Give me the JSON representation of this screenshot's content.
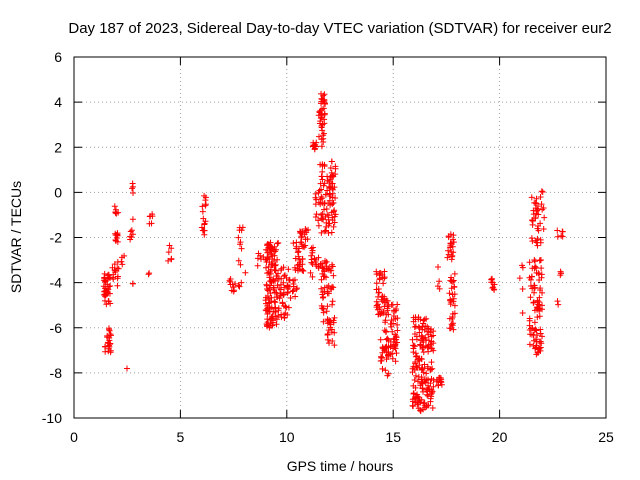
{
  "chart_data": {
    "type": "scatter",
    "title": "Day 187 of 2023, Sidereal Day-to-day VTEC variation (SDTVAR) for receiver eur2",
    "xlabel": "GPS time / hours",
    "ylabel": "SDTVAR / TECUs",
    "xlim": [
      0,
      25
    ],
    "ylim": [
      -10,
      6
    ],
    "xticks": [
      0,
      5,
      10,
      15,
      20,
      25
    ],
    "yticks": [
      -10,
      -8,
      -6,
      -4,
      -2,
      0,
      2,
      4,
      6
    ],
    "grid": true,
    "marker": "+",
    "color": "#ff0000",
    "clusters": [
      {
        "x": [
          1.4,
          1.7
        ],
        "y": [
          -5.0,
          -3.6
        ],
        "n": 40
      },
      {
        "x": [
          1.45,
          1.75
        ],
        "y": [
          -7.3,
          -6.0
        ],
        "n": 22
      },
      {
        "x": [
          1.8,
          2.1
        ],
        "y": [
          -4.3,
          -3.0
        ],
        "n": 14
      },
      {
        "x": [
          1.9,
          2.1
        ],
        "y": [
          -2.2,
          -1.7
        ],
        "n": 10
      },
      {
        "x": [
          1.9,
          2.1
        ],
        "y": [
          -1.0,
          -0.6
        ],
        "n": 8
      },
      {
        "x": [
          2.2,
          2.4
        ],
        "y": [
          -3.5,
          -2.8
        ],
        "n": 4
      },
      {
        "x": [
          2.4,
          2.5
        ],
        "y": [
          -7.9,
          -7.6
        ],
        "n": 1
      },
      {
        "x": [
          2.6,
          2.8
        ],
        "y": [
          -2.2,
          -1.1
        ],
        "n": 7
      },
      {
        "x": [
          2.7,
          2.8
        ],
        "y": [
          -0.1,
          0.5
        ],
        "n": 4
      },
      {
        "x": [
          2.7,
          2.8
        ],
        "y": [
          -4.1,
          -3.8
        ],
        "n": 2
      },
      {
        "x": [
          3.5,
          3.7
        ],
        "y": [
          -1.4,
          -0.6
        ],
        "n": 6
      },
      {
        "x": [
          3.5,
          3.6
        ],
        "y": [
          -3.7,
          -3.4
        ],
        "n": 2
      },
      {
        "x": [
          4.4,
          4.6
        ],
        "y": [
          -3.2,
          -2.2
        ],
        "n": 6
      },
      {
        "x": [
          6.0,
          6.2
        ],
        "y": [
          -1.9,
          -0.1
        ],
        "n": 16
      },
      {
        "x": [
          7.3,
          7.6
        ],
        "y": [
          -4.4,
          -3.7
        ],
        "n": 10
      },
      {
        "x": [
          7.5,
          8.0
        ],
        "y": [
          -2.8,
          -1.5
        ],
        "n": 8
      },
      {
        "x": [
          7.7,
          8.1
        ],
        "y": [
          -4.3,
          -3.0
        ],
        "n": 6
      },
      {
        "x": [
          8.6,
          8.9
        ],
        "y": [
          -3.6,
          -2.2
        ],
        "n": 6
      },
      {
        "x": [
          9.0,
          9.6
        ],
        "y": [
          -6.0,
          -2.2
        ],
        "n": 130
      },
      {
        "x": [
          9.6,
          10.1
        ],
        "y": [
          -5.7,
          -3.2
        ],
        "n": 40
      },
      {
        "x": [
          10.0,
          10.5
        ],
        "y": [
          -4.8,
          -3.8
        ],
        "n": 15
      },
      {
        "x": [
          10.3,
          10.8
        ],
        "y": [
          -3.5,
          -2.0
        ],
        "n": 30
      },
      {
        "x": [
          10.6,
          11.0
        ],
        "y": [
          -2.6,
          -1.6
        ],
        "n": 18
      },
      {
        "x": [
          11.1,
          11.6
        ],
        "y": [
          -3.8,
          -2.4
        ],
        "n": 20
      },
      {
        "x": [
          11.2,
          11.4
        ],
        "y": [
          1.9,
          2.3
        ],
        "n": 10
      },
      {
        "x": [
          11.3,
          11.5
        ],
        "y": [
          -1.3,
          0.2
        ],
        "n": 8
      },
      {
        "x": [
          11.5,
          11.8
        ],
        "y": [
          2.0,
          4.4
        ],
        "n": 40
      },
      {
        "x": [
          11.5,
          12.3
        ],
        "y": [
          -1.8,
          1.4
        ],
        "n": 90
      },
      {
        "x": [
          11.6,
          12.2
        ],
        "y": [
          -5.8,
          -3.0
        ],
        "n": 50
      },
      {
        "x": [
          11.9,
          12.3
        ],
        "y": [
          -6.8,
          -5.5
        ],
        "n": 20
      },
      {
        "x": [
          14.2,
          14.6
        ],
        "y": [
          -5.5,
          -3.4
        ],
        "n": 40
      },
      {
        "x": [
          14.4,
          14.8
        ],
        "y": [
          -8.3,
          -6.5
        ],
        "n": 25
      },
      {
        "x": [
          14.6,
          15.2
        ],
        "y": [
          -7.5,
          -4.8
        ],
        "n": 60
      },
      {
        "x": [
          15.9,
          16.9
        ],
        "y": [
          -9.7,
          -5.5
        ],
        "n": 170
      },
      {
        "x": [
          17.0,
          17.3
        ],
        "y": [
          -8.7,
          -8.2
        ],
        "n": 15
      },
      {
        "x": [
          17.0,
          17.2
        ],
        "y": [
          -4.5,
          -3.3
        ],
        "n": 4
      },
      {
        "x": [
          17.5,
          17.9
        ],
        "y": [
          -3.0,
          -1.8
        ],
        "n": 20
      },
      {
        "x": [
          17.6,
          17.9
        ],
        "y": [
          -6.1,
          -3.6
        ],
        "n": 30
      },
      {
        "x": [
          19.6,
          19.8
        ],
        "y": [
          -4.5,
          -3.7
        ],
        "n": 10
      },
      {
        "x": [
          20.9,
          21.1
        ],
        "y": [
          -6.0,
          -2.0
        ],
        "n": 5
      },
      {
        "x": [
          21.4,
          22.0
        ],
        "y": [
          -7.3,
          -2.8
        ],
        "n": 90
      },
      {
        "x": [
          21.5,
          22.1
        ],
        "y": [
          -2.4,
          0.1
        ],
        "n": 40
      },
      {
        "x": [
          22.7,
          23.0
        ],
        "y": [
          -2.0,
          -1.5
        ],
        "n": 6
      },
      {
        "x": [
          22.7,
          23.0
        ],
        "y": [
          -3.7,
          -3.4
        ],
        "n": 4
      },
      {
        "x": [
          22.7,
          22.9
        ],
        "y": [
          -5.0,
          -4.8
        ],
        "n": 2
      }
    ]
  }
}
